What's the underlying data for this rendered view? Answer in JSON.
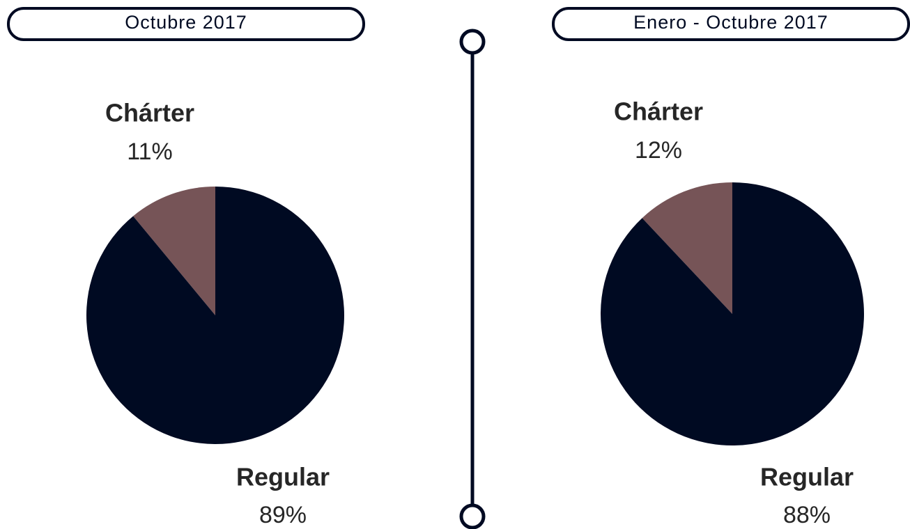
{
  "chart_data": [
    {
      "type": "pie",
      "title": "Octubre 2017",
      "categories": [
        "Chárter",
        "Regular"
      ],
      "values": [
        11,
        89
      ],
      "value_labels": [
        "11%",
        "89%"
      ],
      "colors": [
        "#765457",
        "#000a22"
      ]
    },
    {
      "type": "pie",
      "title": "Enero - Octubre 2017",
      "categories": [
        "Chárter",
        "Regular"
      ],
      "values": [
        12,
        88
      ],
      "value_labels": [
        "12%",
        "88%"
      ],
      "colors": [
        "#765457",
        "#000a22"
      ]
    }
  ]
}
